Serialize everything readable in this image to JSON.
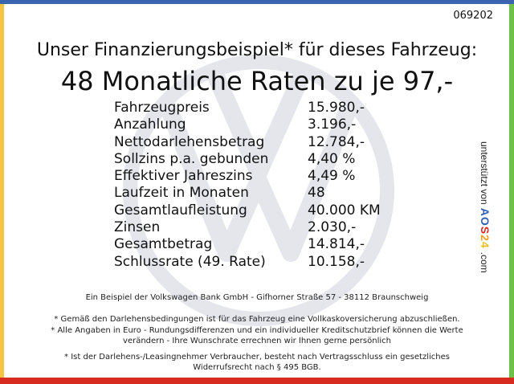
{
  "colors": {
    "top": "#3a63b0",
    "left": "#f5c542",
    "right": "#6cc04a",
    "bottom": "#d62b1e"
  },
  "code": "069202",
  "title": "Unser Finanzierungsbeispiel* für dieses Fahrzeug:",
  "subtitle": "48 Monatliche Raten zu je 97,-",
  "rows": [
    {
      "label": "Fahrzeugpreis",
      "value": "15.980,-"
    },
    {
      "label": "Anzahlung",
      "value": "3.196,-"
    },
    {
      "label": "Nettodarlehensbetrag",
      "value": "12.784,-"
    },
    {
      "label": "Sollzins p.a. gebunden",
      "value": "4,40 %"
    },
    {
      "label": "Effektiver Jahreszins",
      "value": "4,49 %"
    },
    {
      "label": "Laufzeit in Monaten",
      "value": "48"
    },
    {
      "label": "Gesamtlaufleistung",
      "value": "40.000 KM"
    },
    {
      "label": "Zinsen",
      "value": "2.030,-"
    },
    {
      "label": "Gesamtbetrag",
      "value": "14.814,-"
    },
    {
      "label": "Schlussrate (49. Rate)",
      "value": "10.158,-"
    }
  ],
  "side": {
    "prefix": "unterstützt von",
    "brand": [
      "A",
      "O",
      "S",
      "2",
      "4"
    ],
    "suffix": ".com"
  },
  "footer": {
    "bank": "Ein Beispiel der Volkswagen Bank GmbH - Gifhorner Straße 57 - 38112 Braunschweig",
    "note1": "* Gemäß den Darlehensbedingungen ist für das Fahrzeug eine Vollkaskoversicherung abzuschließen.",
    "note2a": "* Alle Angaben in Euro - Rundungsdifferenzen und ein individueller Kreditschutzbrief können die Werte",
    "note2b": "verändern - Ihre Wunschrate errechnen wir Ihnen gerne persönlich",
    "note3a": "* Ist der Darlehens-/Leasingnehmer Verbraucher, besteht nach Vertragsschluss ein gesetzliches",
    "note3b": "Widerrufsrecht nach § 495 BGB."
  }
}
